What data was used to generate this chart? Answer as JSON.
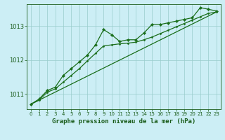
{
  "xlabel": "Graphe pression niveau de la mer (hPa)",
  "background_color": "#cceef5",
  "grid_color": "#99cccc",
  "line_color": "#1a6e1a",
  "marker_color": "#1a6e1a",
  "text_color": "#1a5c1a",
  "ylim": [
    1010.55,
    1013.65
  ],
  "xlim": [
    -0.5,
    23.5
  ],
  "yticks": [
    1011,
    1012,
    1013
  ],
  "xticks": [
    0,
    1,
    2,
    3,
    4,
    5,
    6,
    7,
    8,
    9,
    10,
    11,
    12,
    13,
    14,
    15,
    16,
    17,
    18,
    19,
    20,
    21,
    22,
    23
  ],
  "series": [
    {
      "x": [
        0,
        1,
        2,
        3,
        4,
        5,
        6,
        7,
        8,
        9,
        10,
        11,
        12,
        13,
        14,
        15,
        16,
        17,
        18,
        19,
        20,
        21,
        22,
        23
      ],
      "y": [
        1010.7,
        1010.85,
        1011.1,
        1011.2,
        1011.55,
        1011.75,
        1011.95,
        1012.15,
        1012.45,
        1012.9,
        1012.75,
        1012.55,
        1012.6,
        1012.6,
        1012.8,
        1013.05,
        1013.05,
        1013.1,
        1013.15,
        1013.2,
        1013.25,
        1013.55,
        1013.5,
        1013.45
      ]
    },
    {
      "x": [
        0,
        1,
        2,
        3,
        4,
        5,
        6,
        7,
        8,
        9,
        10,
        11,
        12,
        13,
        14,
        15,
        16,
        17,
        18,
        19,
        20,
        21,
        22,
        23
      ],
      "y": [
        1010.7,
        1010.82,
        1011.05,
        1011.15,
        1011.35,
        1011.55,
        1011.75,
        1011.98,
        1012.2,
        1012.42,
        1012.45,
        1012.48,
        1012.5,
        1012.53,
        1012.6,
        1012.68,
        1012.78,
        1012.88,
        1012.98,
        1013.08,
        1013.18,
        1013.28,
        1013.38,
        1013.42
      ]
    },
    {
      "x": [
        0,
        23
      ],
      "y": [
        1010.7,
        1013.42
      ]
    }
  ]
}
